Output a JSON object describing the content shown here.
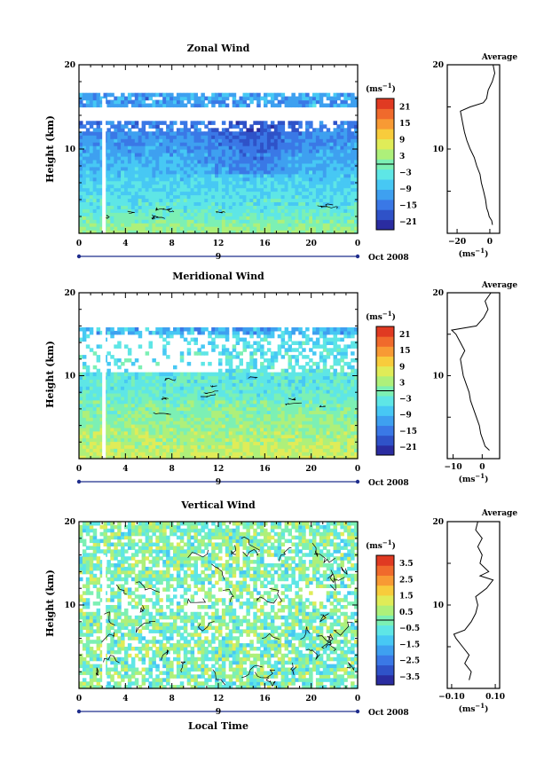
{
  "colors": {
    "scale": [
      "#2a2ca0",
      "#2f52c8",
      "#3a78e6",
      "#3ea0f0",
      "#47c8f4",
      "#5ee6e6",
      "#7cf0b4",
      "#aef07a",
      "#e0ec58",
      "#f8cc3c",
      "#f89a34",
      "#f06a2c",
      "#e03a22"
    ],
    "frame": "#000000",
    "time_axis": "#1f2d8c"
  },
  "chart_data": [
    {
      "type": "heatmap",
      "title": "Zonal Wind",
      "ylabel": "Height (km)",
      "ylim": [
        0,
        20
      ],
      "yticks": [
        "10",
        "20"
      ],
      "xlim": [
        0,
        24
      ],
      "xticks": [
        "0",
        "4",
        "8",
        "12",
        "16",
        "20",
        "0"
      ],
      "date_label": "9",
      "month_label": "Oct 2008",
      "colorbar": {
        "unit": "(ms",
        "unit_exp": "−1",
        "ticks": [
          "21",
          "15",
          "9",
          "3",
          "−3",
          "−9",
          "−15",
          "−21"
        ],
        "range": [
          -24,
          24
        ]
      },
      "contour_levels": [
        0
      ],
      "average": {
        "title": "Average",
        "xlabel": "(ms",
        "xlabel_exp": "−1",
        "xticks": [
          "−20",
          "0"
        ],
        "xlim": [
          -26,
          6
        ],
        "yticks": [
          "10",
          "20"
        ],
        "profile": [
          [
            1.0,
            1.6
          ],
          [
            1.5,
            1.2
          ],
          [
            2.0,
            -0.4
          ],
          [
            2.5,
            -1.0
          ],
          [
            3.0,
            -1.9
          ],
          [
            4.0,
            -2.6
          ],
          [
            5.0,
            -3.8
          ],
          [
            6.0,
            -5.2
          ],
          [
            7.0,
            -6.0
          ],
          [
            8.0,
            -8.0
          ],
          [
            9.0,
            -9.5
          ],
          [
            10.0,
            -12.0
          ],
          [
            11.0,
            -14.0
          ],
          [
            12.0,
            -15.5
          ],
          [
            13.0,
            -16.5
          ],
          [
            14.0,
            -17.5
          ],
          [
            14.5,
            -18.0
          ],
          [
            15.0,
            -12.0
          ],
          [
            15.5,
            -4.0
          ],
          [
            16.0,
            -2.0
          ],
          [
            17.0,
            -1.0
          ],
          [
            18.0,
            1.5
          ],
          [
            19.0,
            3.0
          ],
          [
            20.0,
            2.0
          ]
        ]
      }
    },
    {
      "type": "heatmap",
      "title": "Meridional Wind",
      "ylabel": "Height (km)",
      "ylim": [
        0,
        20
      ],
      "yticks": [
        "10",
        "20"
      ],
      "xlim": [
        0,
        24
      ],
      "xticks": [
        "0",
        "4",
        "8",
        "12",
        "16",
        "20",
        "0"
      ],
      "date_label": "9",
      "month_label": "Oct 2008",
      "colorbar": {
        "unit": "(ms",
        "unit_exp": "−1",
        "ticks": [
          "21",
          "15",
          "9",
          "3",
          "−3",
          "−9",
          "−15",
          "−21"
        ],
        "range": [
          -24,
          24
        ]
      },
      "contour_levels": [
        0
      ],
      "average": {
        "title": "Average",
        "xlabel": "(ms",
        "xlabel_exp": "−1",
        "xticks": [
          "−10",
          "0"
        ],
        "xlim": [
          -12,
          6
        ],
        "yticks": [
          "10",
          "20"
        ],
        "profile": [
          [
            1.0,
            2.5
          ],
          [
            1.5,
            1.0
          ],
          [
            2.0,
            0.5
          ],
          [
            3.0,
            -0.5
          ],
          [
            4.0,
            -1.0
          ],
          [
            5.0,
            -2.0
          ],
          [
            6.0,
            -3.0
          ],
          [
            7.0,
            -4.0
          ],
          [
            8.0,
            -4.5
          ],
          [
            9.0,
            -5.5
          ],
          [
            10.0,
            -6.5
          ],
          [
            11.0,
            -7.0
          ],
          [
            12.0,
            -7.5
          ],
          [
            13.0,
            -6.0
          ],
          [
            14.0,
            -7.5
          ],
          [
            15.0,
            -9.0
          ],
          [
            15.5,
            -10.5
          ],
          [
            16.0,
            -2.0
          ],
          [
            17.0,
            0.5
          ],
          [
            18.0,
            2.0
          ],
          [
            19.0,
            1.0
          ],
          [
            20.0,
            3.0
          ]
        ]
      }
    },
    {
      "type": "heatmap",
      "title": "Vertical Wind",
      "ylabel": "Height (km)",
      "xlabel": "Local Time",
      "ylim": [
        0,
        20
      ],
      "yticks": [
        "10",
        "20"
      ],
      "xlim": [
        0,
        24
      ],
      "xticks": [
        "0",
        "4",
        "8",
        "12",
        "16",
        "20",
        "0"
      ],
      "date_label": "9",
      "month_label": "Oct 2008",
      "colorbar": {
        "unit": "(ms",
        "unit_exp": "−1",
        "ticks": [
          "3.5",
          "2.5",
          "1.5",
          "0.5",
          "−0.5",
          "−1.5",
          "−2.5",
          "−3.5"
        ],
        "range": [
          -4,
          4
        ]
      },
      "contour_levels": [
        0
      ],
      "average": {
        "title": "Average",
        "xlabel": "(ms",
        "xlabel_exp": "−1",
        "xticks": [
          "−0.10",
          "0.10"
        ],
        "xlim": [
          -0.12,
          0.12
        ],
        "yticks": [
          "10",
          "20"
        ],
        "profile": [
          [
            1.0,
            -0.02
          ],
          [
            2.0,
            -0.01
          ],
          [
            3.0,
            -0.04
          ],
          [
            4.0,
            -0.02
          ],
          [
            5.0,
            -0.05
          ],
          [
            6.0,
            -0.08
          ],
          [
            6.5,
            -0.09
          ],
          [
            7.0,
            -0.04
          ],
          [
            8.0,
            -0.01
          ],
          [
            9.0,
            0.01
          ],
          [
            10.0,
            0.02
          ],
          [
            11.0,
            0.01
          ],
          [
            12.0,
            0.06
          ],
          [
            13.0,
            0.09
          ],
          [
            13.5,
            0.03
          ],
          [
            14.0,
            0.07
          ],
          [
            15.0,
            0.03
          ],
          [
            16.0,
            0.04
          ],
          [
            17.0,
            0.02
          ],
          [
            18.0,
            0.04
          ],
          [
            19.0,
            0.01
          ],
          [
            20.0,
            0.02
          ]
        ]
      }
    }
  ]
}
